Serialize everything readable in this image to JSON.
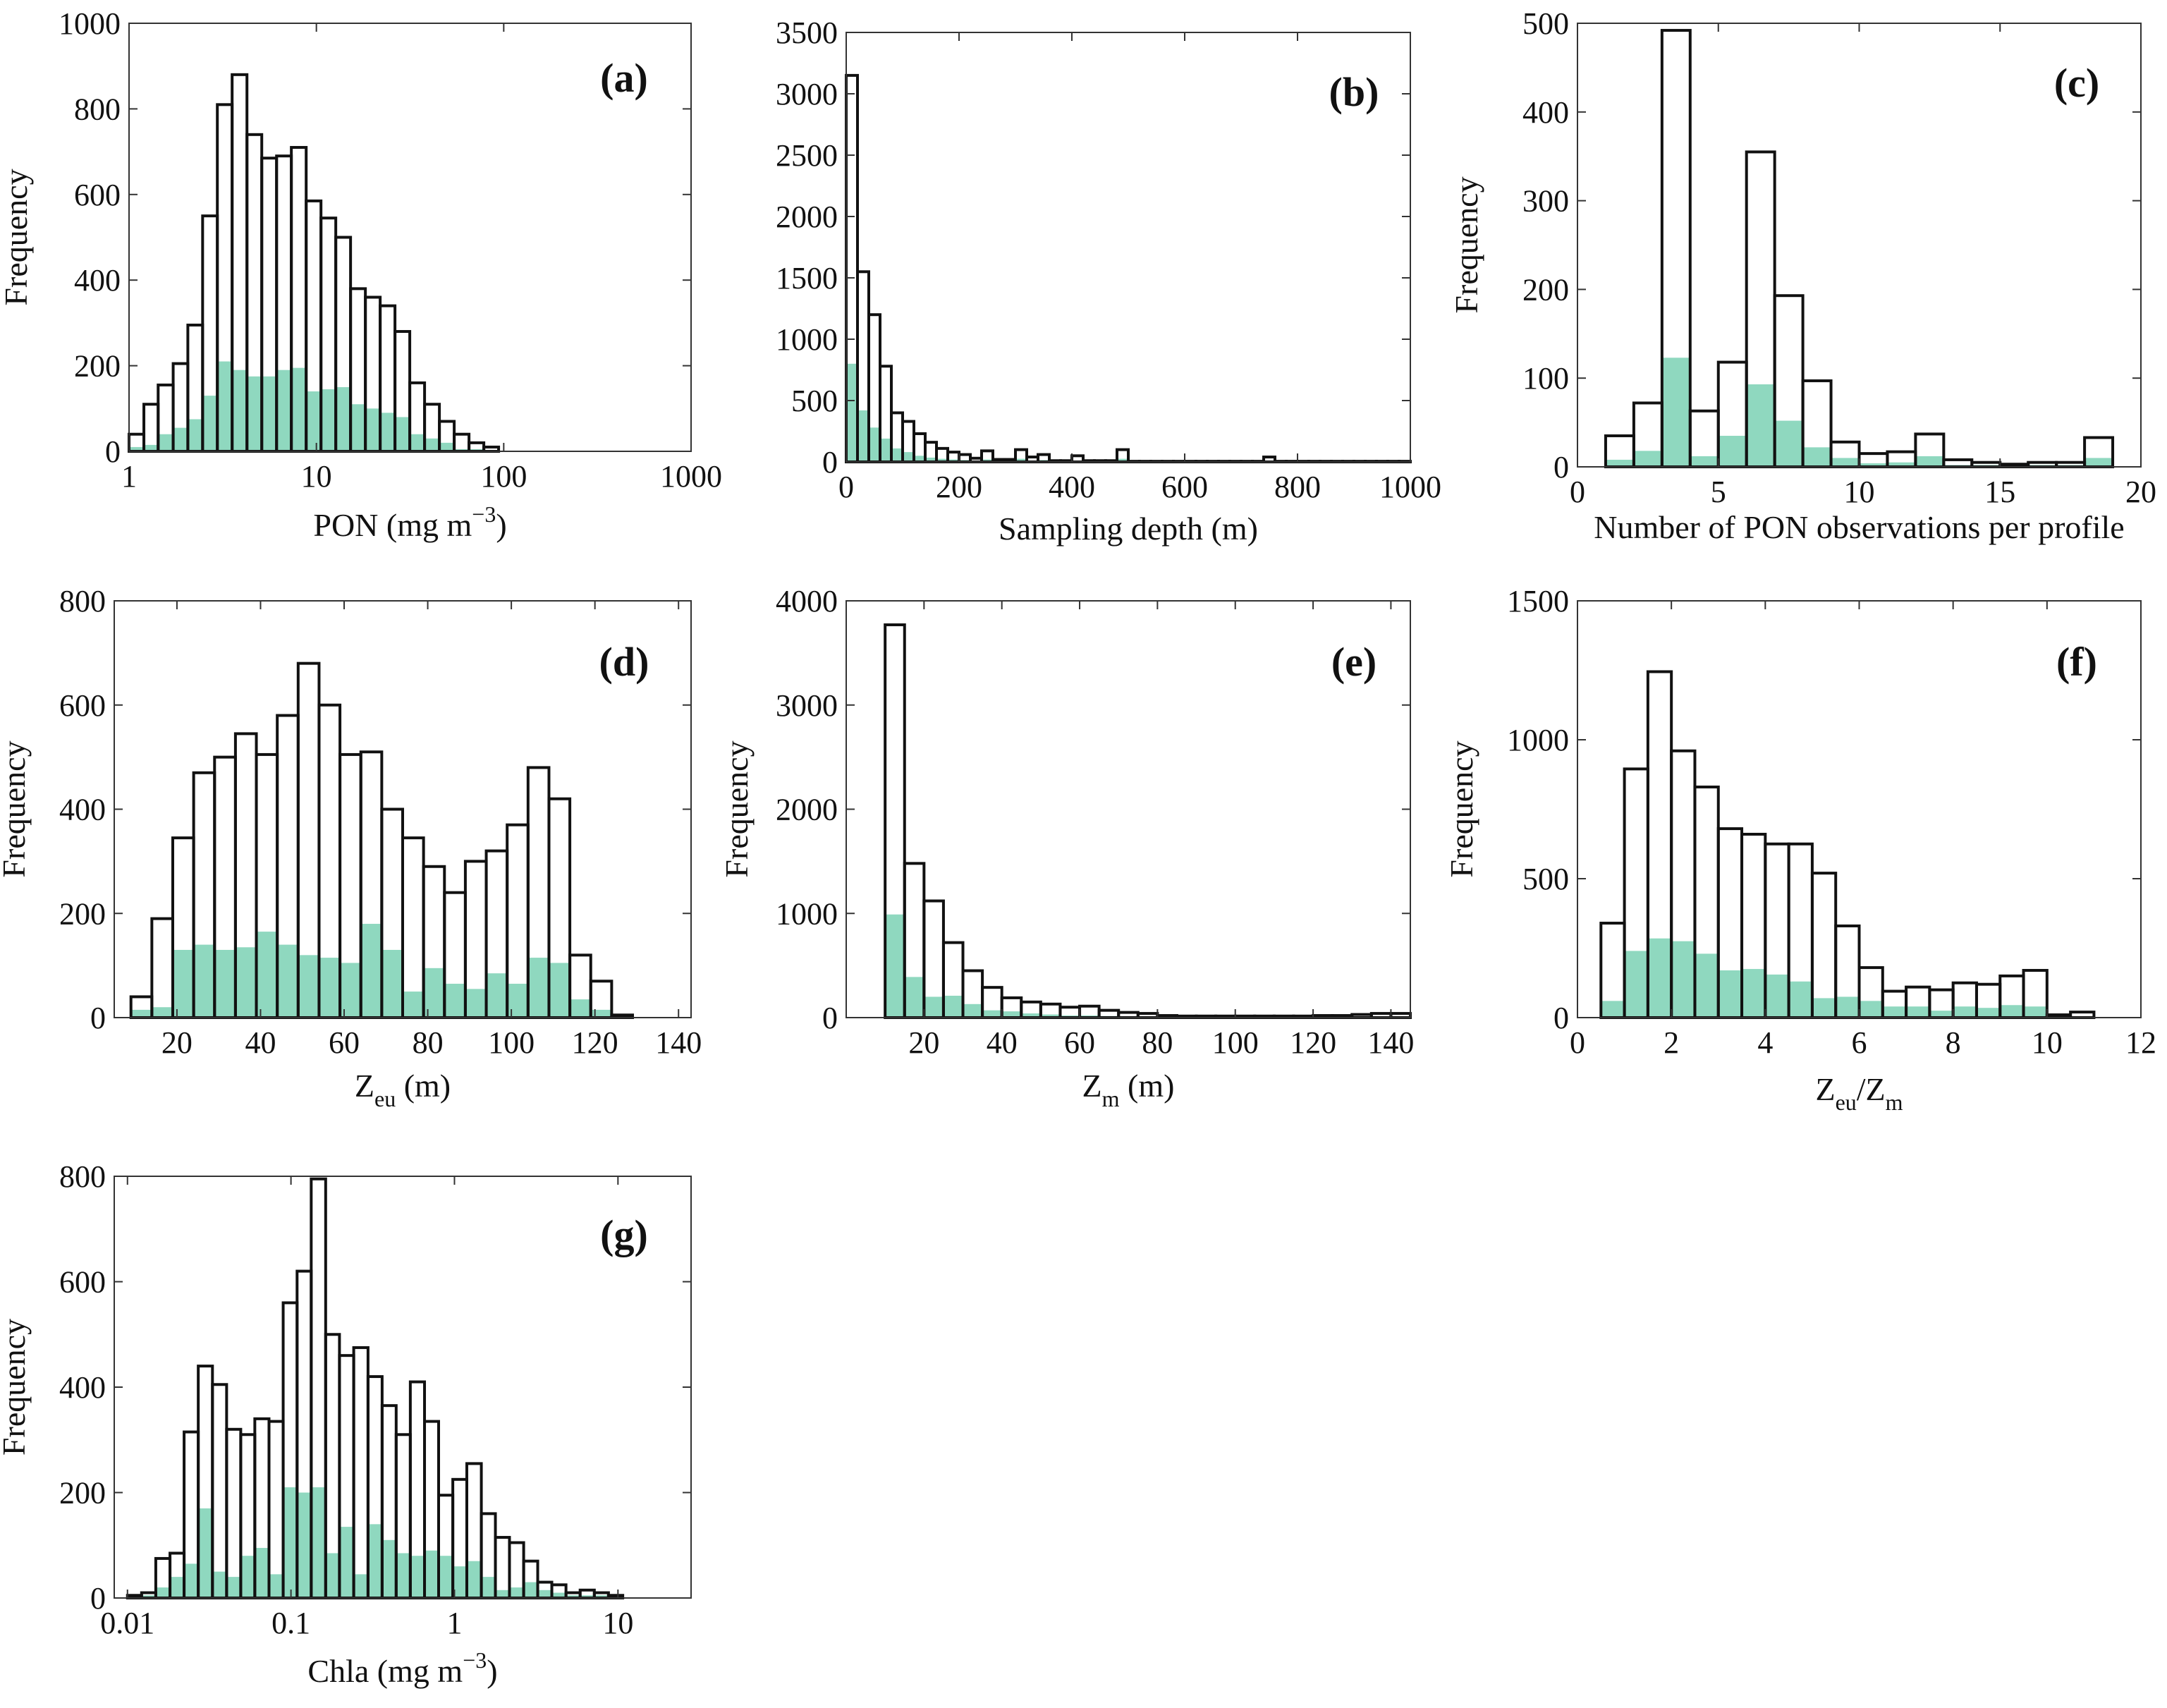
{
  "colors": {
    "outline": "#111111",
    "fill": "#8fd8bf",
    "axis": "#333333"
  },
  "chart_data": [
    {
      "type": "bar",
      "panel": "(a)",
      "xscale": "log",
      "xlim": [
        1,
        1000
      ],
      "ylim": [
        0,
        1000
      ],
      "xticks": [
        1,
        10,
        100,
        1000
      ],
      "xtick_labels": [
        "1",
        "10",
        "100",
        "1000"
      ],
      "yticks": [
        0,
        200,
        400,
        600,
        800,
        1000
      ],
      "ytick_labels": [
        "0",
        "200",
        "400",
        "600",
        "800",
        "1000"
      ],
      "ylabel": "Frequency",
      "xlabel": {
        "main": "PON (mg m",
        "sup": "−3",
        "close": ")"
      },
      "bin_edges": [
        1,
        1.2,
        1.43,
        1.72,
        2.06,
        2.47,
        2.96,
        3.55,
        4.26,
        5.11,
        6.13,
        7.35,
        8.82,
        10.58,
        12.69,
        15.22,
        18.26,
        21.9,
        26.27,
        31.51,
        37.8,
        45.35,
        54.4,
        65.26,
        78.29,
        93.91,
        112.7,
        135.2,
        162.1,
        194.5
      ],
      "series": [
        {
          "values": [
            40,
            110,
            155,
            205,
            295,
            550,
            810,
            880,
            740,
            685,
            690,
            710,
            585,
            545,
            500,
            380,
            360,
            340,
            280,
            160,
            110,
            70,
            40,
            20,
            10,
            0,
            0,
            0,
            0
          ]
        },
        {
          "values": [
            10,
            15,
            40,
            55,
            75,
            130,
            210,
            190,
            175,
            175,
            190,
            195,
            140,
            145,
            150,
            110,
            100,
            90,
            80,
            40,
            30,
            20,
            5,
            5,
            2,
            0,
            0,
            0,
            0
          ]
        }
      ]
    },
    {
      "type": "bar",
      "panel": "(b)",
      "xscale": "linear",
      "xlim": [
        0,
        1000
      ],
      "ylim": [
        0,
        3500
      ],
      "xticks": [
        0,
        200,
        400,
        600,
        800,
        1000
      ],
      "xtick_labels": [
        "0",
        "200",
        "400",
        "600",
        "800",
        "1000"
      ],
      "yticks": [
        0,
        500,
        1000,
        1500,
        2000,
        2500,
        3000,
        3500
      ],
      "ytick_labels": [
        "0",
        "500",
        "1000",
        "1500",
        "2000",
        "2500",
        "3000",
        "3500"
      ],
      "ylabel": "",
      "xlabel": {
        "main": "Sampling depth (m)"
      },
      "bin_width": 20,
      "bin_start": 0,
      "series": [
        {
          "values": [
            3150,
            1550,
            1200,
            780,
            400,
            330,
            230,
            160,
            110,
            80,
            60,
            30,
            90,
            20,
            20,
            100,
            40,
            60,
            10,
            10,
            50,
            10,
            10,
            10,
            100,
            5,
            5,
            5,
            5,
            5,
            5,
            5,
            5,
            5,
            5,
            5,
            5,
            40,
            5,
            5,
            5,
            5,
            5,
            5,
            5,
            5,
            5,
            5,
            5,
            5
          ]
        },
        {
          "values": [
            800,
            420,
            280,
            190,
            110,
            80,
            50,
            35,
            25,
            20,
            15,
            10,
            20,
            5,
            5,
            25,
            10,
            15,
            2,
            2,
            10,
            2,
            2,
            2,
            25,
            1,
            1,
            1,
            1,
            1,
            1,
            1,
            1,
            1,
            1,
            1,
            1,
            10,
            1,
            1,
            1,
            1,
            1,
            1,
            1,
            1,
            1,
            1,
            1,
            1
          ]
        }
      ]
    },
    {
      "type": "bar",
      "panel": "(c)",
      "xscale": "linear",
      "xlim": [
        0,
        20
      ],
      "ylim": [
        0,
        500
      ],
      "xticks": [
        0,
        5,
        10,
        15,
        20
      ],
      "xtick_labels": [
        "0",
        "5",
        "10",
        "15",
        "20"
      ],
      "yticks": [
        0,
        100,
        200,
        300,
        400,
        500
      ],
      "ytick_labels": [
        "0",
        "100",
        "200",
        "300",
        "400",
        "500"
      ],
      "ylabel": "Frequency",
      "xlabel": {
        "main": "Number of PON observations per profile"
      },
      "bin_width": 1,
      "bin_start": 1,
      "series": [
        {
          "values": [
            35,
            72,
            492,
            63,
            118,
            355,
            193,
            97,
            28,
            15,
            17,
            37,
            8,
            5,
            3,
            5,
            5,
            33
          ]
        },
        {
          "values": [
            8,
            18,
            123,
            12,
            35,
            93,
            52,
            22,
            10,
            4,
            5,
            12,
            2,
            2,
            1,
            2,
            2,
            10
          ]
        }
      ]
    },
    {
      "type": "bar",
      "panel": "(d)",
      "xscale": "linear",
      "xlim": [
        5,
        143
      ],
      "ylim": [
        0,
        800
      ],
      "xticks": [
        20,
        40,
        60,
        80,
        100,
        120,
        140
      ],
      "xtick_labels": [
        "20",
        "40",
        "60",
        "80",
        "100",
        "120",
        "140"
      ],
      "yticks": [
        0,
        200,
        400,
        600,
        800
      ],
      "ytick_labels": [
        "0",
        "200",
        "400",
        "600",
        "800"
      ],
      "ylabel": "Frequency",
      "xlabel": {
        "main": "Z",
        "sub": "eu",
        "close": " (m)"
      },
      "bin_width": 5,
      "bin_start": 9,
      "series": [
        {
          "values": [
            40,
            190,
            345,
            470,
            500,
            545,
            505,
            580,
            680,
            600,
            505,
            510,
            400,
            345,
            290,
            240,
            300,
            320,
            370,
            480,
            420,
            120,
            70,
            5
          ]
        },
        {
          "values": [
            15,
            20,
            130,
            140,
            130,
            135,
            165,
            140,
            120,
            115,
            105,
            180,
            130,
            50,
            95,
            65,
            55,
            85,
            65,
            115,
            105,
            35,
            15,
            5
          ]
        }
      ]
    },
    {
      "type": "bar",
      "panel": "(e)",
      "xscale": "linear",
      "xlim": [
        0,
        145
      ],
      "ylim": [
        0,
        4000
      ],
      "xticks": [
        20,
        40,
        60,
        80,
        100,
        120,
        140
      ],
      "xtick_labels": [
        "20",
        "40",
        "60",
        "80",
        "100",
        "120",
        "140"
      ],
      "yticks": [
        0,
        1000,
        2000,
        3000,
        4000
      ],
      "ytick_labels": [
        "0",
        "1000",
        "2000",
        "3000",
        "4000"
      ],
      "ylabel": "Frequency",
      "xlabel": {
        "main": "Z",
        "sub": "m",
        "close": " (m)"
      },
      "bin_width": 5,
      "bin_start": 10,
      "series": [
        {
          "values": [
            3770,
            1480,
            1120,
            720,
            450,
            290,
            190,
            150,
            130,
            100,
            110,
            70,
            50,
            40,
            20,
            15,
            15,
            15,
            15,
            15,
            15,
            15,
            20,
            20,
            30,
            40,
            40
          ]
        },
        {
          "values": [
            990,
            390,
            200,
            210,
            130,
            70,
            60,
            40,
            30,
            20,
            20,
            15,
            10,
            10,
            5,
            5,
            5,
            5,
            5,
            5,
            5,
            5,
            5,
            5,
            5,
            10,
            10
          ]
        }
      ]
    },
    {
      "type": "bar",
      "panel": "(f)",
      "xscale": "linear",
      "xlim": [
        0,
        12
      ],
      "ylim": [
        0,
        1500
      ],
      "xticks": [
        0,
        2,
        4,
        6,
        8,
        10,
        12
      ],
      "xtick_labels": [
        "0",
        "2",
        "4",
        "6",
        "8",
        "10",
        "12"
      ],
      "yticks": [
        0,
        500,
        1000,
        1500
      ],
      "ytick_labels": [
        "0",
        "500",
        "1000",
        "1500"
      ],
      "ylabel": "Frequency",
      "xlabel": {
        "main": "Z",
        "sub": "eu",
        "mid": "/Z",
        "sub2": "m"
      },
      "bin_width": 0.5,
      "bin_start": 0.5,
      "series": [
        {
          "values": [
            340,
            895,
            1245,
            960,
            830,
            680,
            660,
            625,
            625,
            520,
            330,
            180,
            95,
            110,
            100,
            125,
            120,
            150,
            170,
            10,
            20
          ]
        },
        {
          "values": [
            60,
            240,
            285,
            275,
            230,
            170,
            175,
            155,
            130,
            70,
            75,
            60,
            40,
            40,
            25,
            40,
            35,
            45,
            40,
            2,
            5
          ]
        }
      ]
    },
    {
      "type": "bar",
      "panel": "(g)",
      "xscale": "log",
      "xlim": [
        0.0083,
        28
      ],
      "ylim": [
        0,
        800
      ],
      "xticks": [
        0.01,
        0.1,
        1,
        10
      ],
      "xtick_labels": [
        "0.01",
        "0.1",
        "1",
        "10"
      ],
      "yticks": [
        0,
        200,
        400,
        600,
        800
      ],
      "ytick_labels": [
        "0",
        "200",
        "400",
        "600",
        "800"
      ],
      "ylabel": "Frequency",
      "xlabel": {
        "main": "Chla (mg m",
        "sup": "−3",
        "close": ")"
      },
      "bin_edges": [
        0.01,
        0.0122,
        0.0149,
        0.0182,
        0.0222,
        0.0271,
        0.0331,
        0.0404,
        0.0493,
        0.0601,
        0.0734,
        0.0896,
        0.109,
        0.133,
        0.163,
        0.198,
        0.242,
        0.296,
        0.361,
        0.44,
        0.537,
        0.656,
        0.8,
        0.977,
        1.19,
        1.46,
        1.78,
        2.17,
        2.65,
        3.23,
        3.94,
        4.81,
        5.87,
        7.17,
        8.75,
        10.7,
        13.0,
        15.9,
        19.4
      ],
      "series": [
        {
          "values": [
            5,
            10,
            75,
            85,
            315,
            440,
            405,
            320,
            310,
            340,
            335,
            560,
            620,
            795,
            500,
            460,
            475,
            420,
            365,
            310,
            410,
            335,
            195,
            225,
            255,
            160,
            115,
            105,
            70,
            30,
            25,
            10,
            15,
            10,
            5,
            0,
            0,
            0
          ]
        },
        {
          "values": [
            2,
            5,
            20,
            40,
            65,
            170,
            50,
            40,
            80,
            95,
            45,
            210,
            200,
            210,
            85,
            135,
            45,
            140,
            110,
            85,
            80,
            90,
            80,
            60,
            70,
            40,
            15,
            20,
            30,
            15,
            10,
            5,
            5,
            5,
            2,
            0,
            0,
            0
          ]
        }
      ]
    }
  ]
}
